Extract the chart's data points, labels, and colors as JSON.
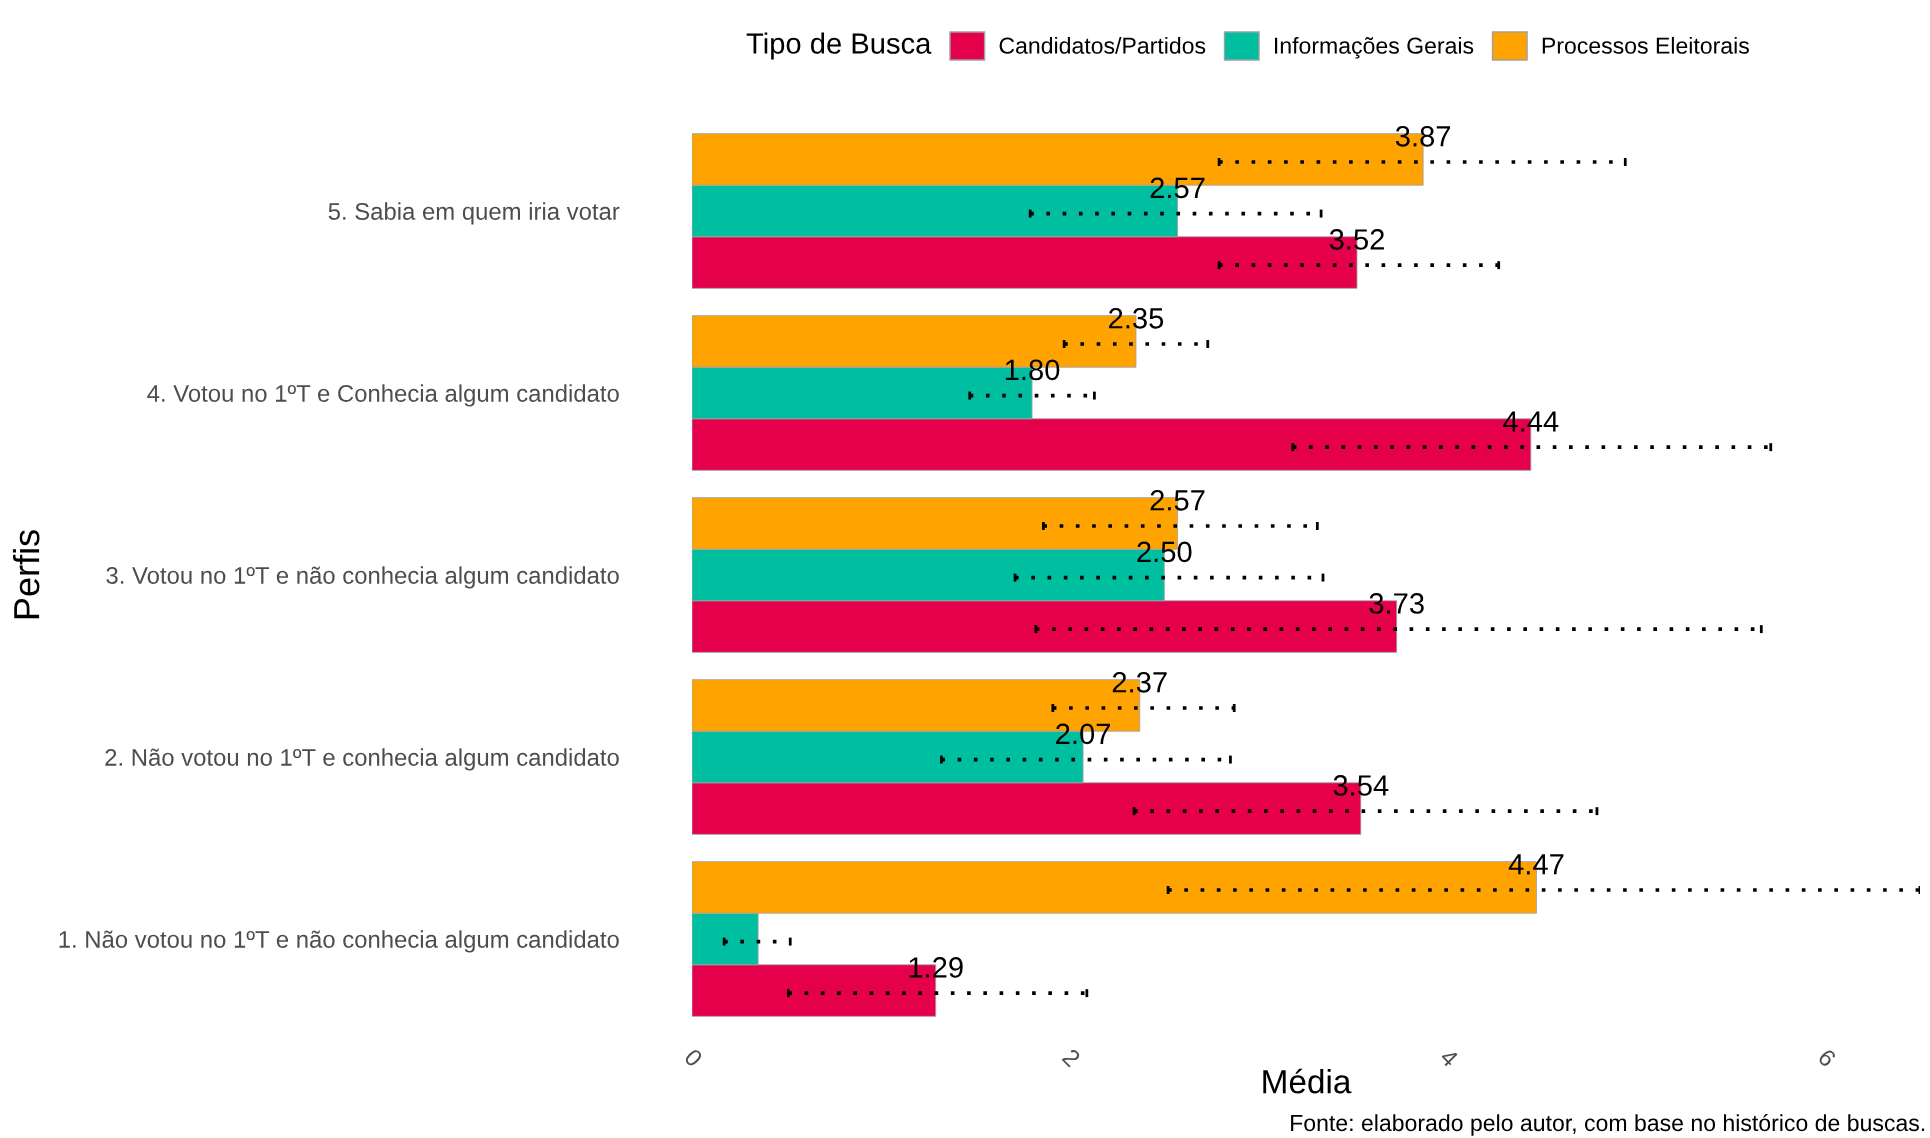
{
  "chart_data": {
    "type": "bar",
    "orientation": "horizontal",
    "categories": [
      "5. Sabia em quem iria votar",
      "4. Votou no 1ºT e Conhecia algum candidato",
      "3. Votou no 1ºT e não conhecia algum candidato",
      "2. Não votou no 1ºT e conhecia algum candidato",
      "1. Não votou no 1ºT e não conhecia algum candidato"
    ],
    "series": [
      {
        "name": "Candidatos/Partidos",
        "color": "#e4004a",
        "values": [
          3.52,
          4.44,
          3.73,
          3.54,
          1.29
        ],
        "value_labels": [
          "3.52",
          "4.44",
          "3.73",
          "3.54",
          "1.29"
        ],
        "errors": [
          [
            2.79,
            4.27
          ],
          [
            3.18,
            5.71
          ],
          [
            1.82,
            5.66
          ],
          [
            2.34,
            4.79
          ],
          [
            0.51,
            2.09
          ]
        ]
      },
      {
        "name": "Informações Gerais",
        "color": "#00bfa0",
        "values": [
          2.57,
          1.8,
          2.5,
          2.07,
          0.35
        ],
        "value_labels": [
          "2.57",
          "1.80",
          "2.50",
          "2.07",
          null
        ],
        "errors": [
          [
            1.79,
            3.33
          ],
          [
            1.47,
            2.13
          ],
          [
            1.71,
            3.34
          ],
          [
            1.32,
            2.85
          ],
          [
            0.17,
            0.52
          ]
        ]
      },
      {
        "name": "Processos Eleitorais",
        "color": "#ffa300",
        "values": [
          3.87,
          2.35,
          2.57,
          2.37,
          4.47
        ],
        "value_labels": [
          "3.87",
          "2.35",
          "2.57",
          "2.37",
          "4.47"
        ],
        "errors": [
          [
            2.79,
            4.94
          ],
          [
            1.97,
            2.73
          ],
          [
            1.86,
            3.31
          ],
          [
            1.91,
            2.87
          ],
          [
            2.52,
            6.5
          ]
        ]
      }
    ],
    "xlim": [
      0,
      6.5
    ],
    "xticks": [
      0,
      2,
      4,
      6
    ],
    "xlabel": "Média",
    "ylabel": "Perfis",
    "legend_title": "Tipo de Busca",
    "legend": "top",
    "grid": false,
    "annotations": [
      "Fonte: elaborado pelo autor, com base no histórico de buscas."
    ]
  }
}
